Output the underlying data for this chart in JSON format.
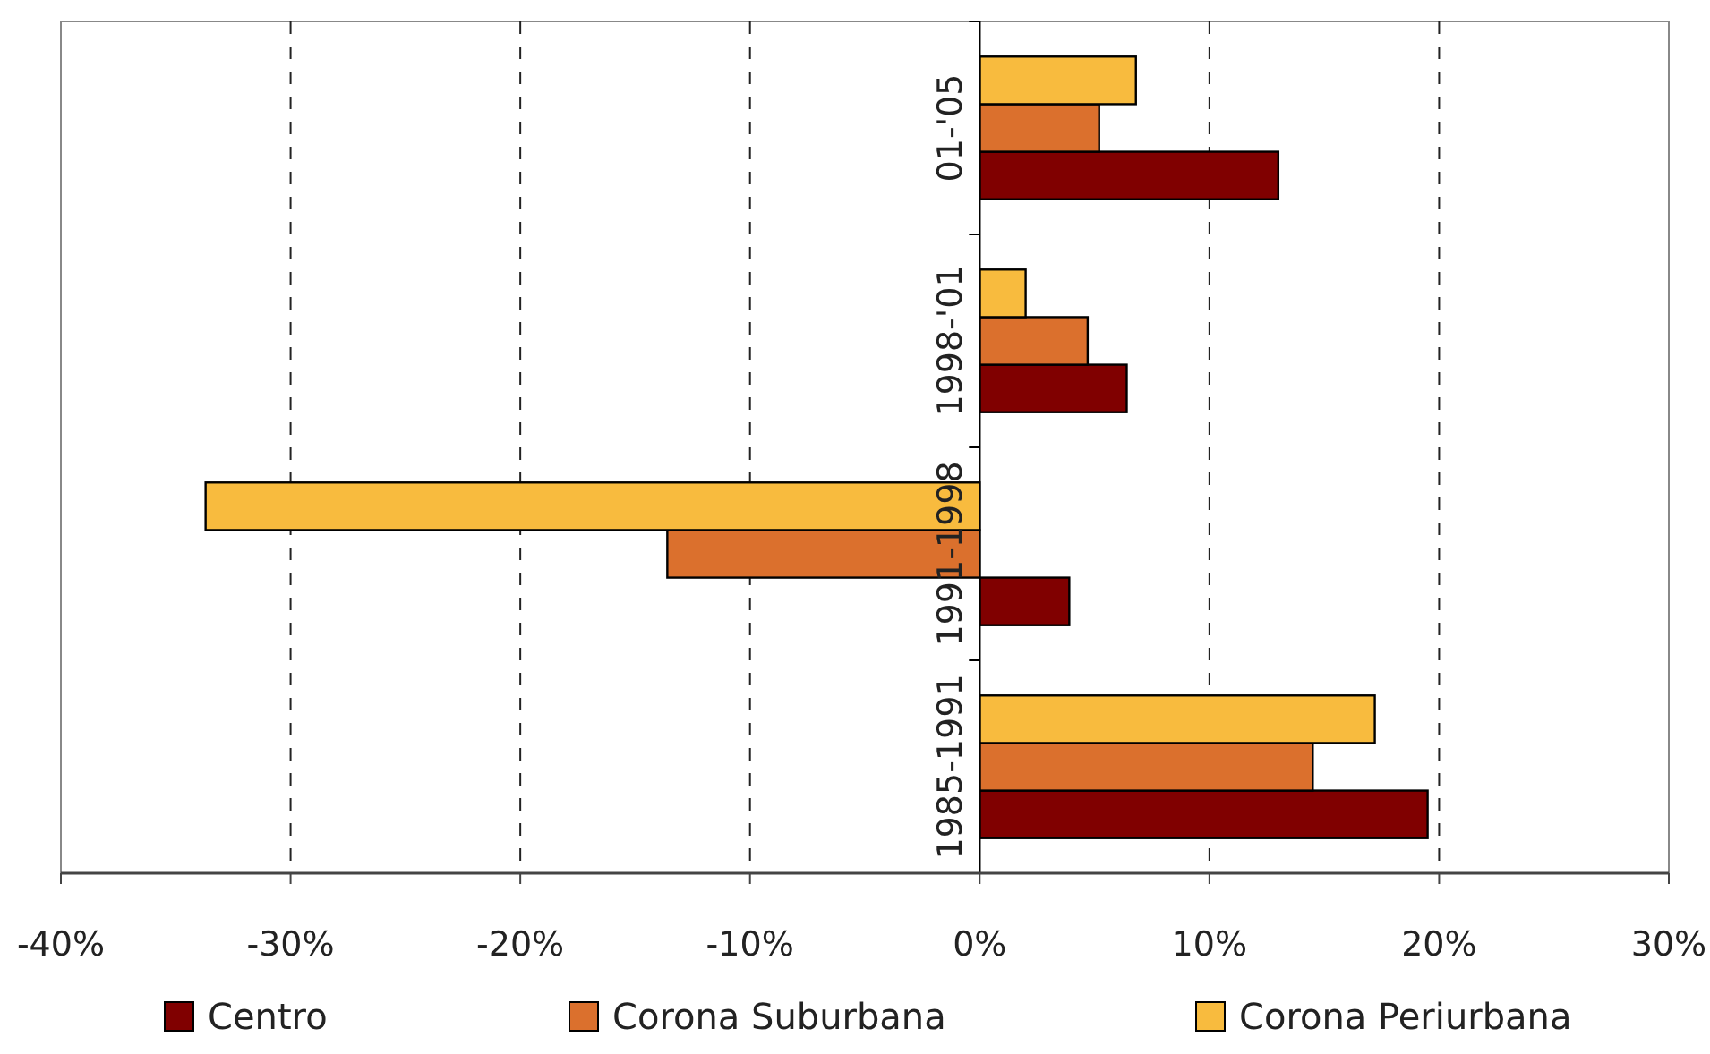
{
  "chart_data": {
    "type": "bar",
    "orientation": "horizontal",
    "categories": [
      "01-'05",
      "1998-'01",
      "1991-1998",
      "1985-1991"
    ],
    "series": [
      {
        "name": "Centro",
        "color": "#800000",
        "values": [
          13.0,
          6.4,
          3.9,
          19.5
        ]
      },
      {
        "name": "Corona Suburbana",
        "color": "#db702d",
        "values": [
          5.2,
          4.7,
          -13.6,
          14.5
        ]
      },
      {
        "name": "Corona Periurbana",
        "color": "#f8bb3e",
        "values": [
          6.8,
          2.0,
          -33.7,
          17.2
        ]
      }
    ],
    "xlim": [
      -40,
      30
    ],
    "xticks": [
      {
        "value": -40,
        "label": "-40%"
      },
      {
        "value": -30,
        "label": "-30%"
      },
      {
        "value": -20,
        "label": "-20%"
      },
      {
        "value": -10,
        "label": "-10%"
      },
      {
        "value": 0,
        "label": "0%"
      },
      {
        "value": 10,
        "label": "10%"
      },
      {
        "value": 20,
        "label": "20%"
      },
      {
        "value": 30,
        "label": "30%"
      }
    ],
    "grid": "x",
    "legend": "bottom"
  }
}
